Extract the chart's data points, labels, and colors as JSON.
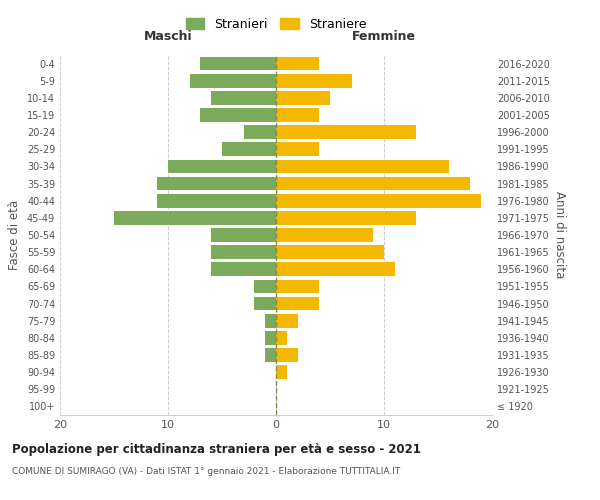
{
  "age_groups": [
    "100+",
    "95-99",
    "90-94",
    "85-89",
    "80-84",
    "75-79",
    "70-74",
    "65-69",
    "60-64",
    "55-59",
    "50-54",
    "45-49",
    "40-44",
    "35-39",
    "30-34",
    "25-29",
    "20-24",
    "15-19",
    "10-14",
    "5-9",
    "0-4"
  ],
  "birth_years": [
    "≤ 1920",
    "1921-1925",
    "1926-1930",
    "1931-1935",
    "1936-1940",
    "1941-1945",
    "1946-1950",
    "1951-1955",
    "1956-1960",
    "1961-1965",
    "1966-1970",
    "1971-1975",
    "1976-1980",
    "1981-1985",
    "1986-1990",
    "1991-1995",
    "1996-2000",
    "2001-2005",
    "2006-2010",
    "2011-2015",
    "2016-2020"
  ],
  "males": [
    0,
    0,
    0,
    1,
    1,
    1,
    2,
    2,
    6,
    6,
    6,
    15,
    11,
    11,
    10,
    5,
    3,
    7,
    6,
    8,
    7
  ],
  "females": [
    0,
    0,
    1,
    2,
    1,
    2,
    4,
    4,
    11,
    10,
    9,
    13,
    19,
    18,
    16,
    4,
    13,
    4,
    5,
    7,
    4
  ],
  "male_color": "#7aaa5a",
  "female_color": "#f5b800",
  "background_color": "#ffffff",
  "grid_color": "#cccccc",
  "title": "Popolazione per cittadinanza straniera per età e sesso - 2021",
  "subtitle": "COMUNE DI SUMIRAGO (VA) - Dati ISTAT 1° gennaio 2021 - Elaborazione TUTTITALIA.IT",
  "ylabel_left": "Fasce di età",
  "ylabel_right": "Anni di nascita",
  "xlabel_left": "Maschi",
  "xlabel_right": "Femmine",
  "legend_males": "Stranieri",
  "legend_females": "Straniere",
  "xlim": 20,
  "bar_height": 0.8
}
